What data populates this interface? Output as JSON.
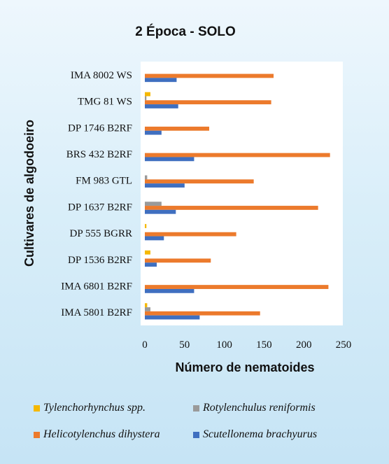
{
  "chart_data": {
    "type": "bar",
    "orientation": "horizontal",
    "title": "2 Época - SOLO",
    "xlabel": "Número de nematoides",
    "ylabel": "Cultivares de algodoeiro",
    "xlim": [
      0,
      250
    ],
    "xticks": [
      0,
      50,
      100,
      150,
      200,
      250
    ],
    "grid": false,
    "legend_position": "bottom",
    "colors": {
      "Tylenchorhynchus spp.": "#f5b800",
      "Rotylenchulus reniformis": "#9a9a9a",
      "Helicotylenchus dihystera": "#ec7a2c",
      "Scutellonema brachyurus": "#3f6fc0"
    },
    "categories": [
      "IMA 8002 WS",
      "TMG 81 WS",
      "DP 1746 B2RF",
      "BRS 432 B2RF",
      "FM 983 GTL",
      "DP 1637 B2RF",
      "DP 555 BGRR",
      "DP 1536 B2RF",
      "IMA 6801 B2RF",
      "IMA 5801 B2RF"
    ],
    "series": [
      {
        "name": "Tylenchorhynchus spp.",
        "values": [
          0,
          7,
          0,
          0,
          0,
          0,
          2,
          7,
          0,
          3
        ]
      },
      {
        "name": "Rotylenchulus reniformis",
        "values": [
          0,
          2,
          0,
          0,
          3,
          21,
          0,
          0,
          0,
          7
        ]
      },
      {
        "name": "Helicotylenchus dihystera",
        "values": [
          162,
          159,
          81,
          233,
          137,
          218,
          115,
          83,
          231,
          145
        ]
      },
      {
        "name": "Scutellonema brachyurus",
        "values": [
          40,
          42,
          21,
          62,
          50,
          39,
          24,
          15,
          62,
          69
        ]
      }
    ]
  }
}
